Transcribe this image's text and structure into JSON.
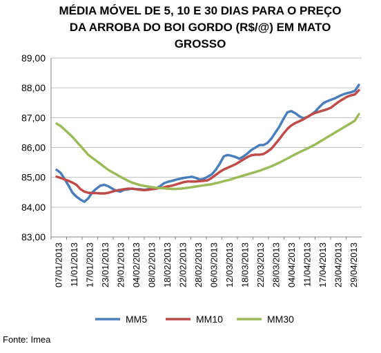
{
  "chart_data": {
    "type": "line",
    "title_lines": [
      "MÉDIA MÓVEL DE 5, 10 E 30 DIAS PARA O PREÇO",
      "DA  ARROBA DO BOI GORDO (R$/@) EM MATO",
      "GROSSO"
    ],
    "xlabel": "",
    "ylabel": "",
    "ylim": [
      83,
      89
    ],
    "y_ticks": [
      "83,00",
      "84,00",
      "85,00",
      "86,00",
      "87,00",
      "88,00",
      "89,00"
    ],
    "x_tick_labels": [
      "07/01/2013",
      "11/01/2013",
      "17/01/2013",
      "23/01/2013",
      "29/01/2013",
      "04/02/2013",
      "08/02/2013",
      "18/02/2013",
      "22/02/2013",
      "28/02/2013",
      "06/03/2013",
      "12/03/2013",
      "18/03/2013",
      "22/03/2013",
      "28/03/2013",
      "04/04/2013",
      "11/04/2013",
      "17/04/2013",
      "23/04/2013",
      "29/04/2013"
    ],
    "grid": "horizontal",
    "legend_position": "bottom",
    "series": [
      {
        "name": "MM5",
        "color": "#4a7ebb",
        "values": [
          85.25,
          85.15,
          84.95,
          84.72,
          84.48,
          84.35,
          84.25,
          84.18,
          84.3,
          84.5,
          84.62,
          84.72,
          84.75,
          84.7,
          84.62,
          84.55,
          84.52,
          84.58,
          84.6,
          84.62,
          84.6,
          84.6,
          84.58,
          84.6,
          84.62,
          84.63,
          84.7,
          84.8,
          84.85,
          84.88,
          84.92,
          84.95,
          84.98,
          85.0,
          85.02,
          84.98,
          84.92,
          84.95,
          85.02,
          85.1,
          85.25,
          85.45,
          85.7,
          85.75,
          85.72,
          85.68,
          85.62,
          85.7,
          85.8,
          85.92,
          86.0,
          86.08,
          86.08,
          86.15,
          86.3,
          86.5,
          86.7,
          86.95,
          87.18,
          87.22,
          87.15,
          87.05,
          86.98,
          87.02,
          87.1,
          87.2,
          87.35,
          87.48,
          87.55,
          87.6,
          87.65,
          87.72,
          87.78,
          87.82,
          87.85,
          87.9,
          88.1
        ]
      },
      {
        "name": "MM10",
        "color": "#be4b48",
        "values": [
          85.02,
          84.98,
          84.93,
          84.88,
          84.82,
          84.75,
          84.6,
          84.52,
          84.48,
          84.47,
          84.47,
          84.46,
          84.46,
          84.48,
          84.52,
          84.56,
          84.58,
          84.6,
          84.62,
          84.62,
          84.6,
          84.58,
          84.57,
          84.58,
          84.6,
          84.62,
          84.64,
          84.66,
          84.7,
          84.72,
          84.76,
          84.8,
          84.84,
          84.86,
          84.86,
          84.86,
          84.87,
          84.88,
          84.9,
          84.98,
          85.08,
          85.18,
          85.26,
          85.32,
          85.38,
          85.44,
          85.52,
          85.6,
          85.68,
          85.74,
          85.76,
          85.76,
          85.78,
          85.86,
          85.96,
          86.12,
          86.28,
          86.46,
          86.62,
          86.74,
          86.82,
          86.88,
          86.94,
          87.02,
          87.1,
          87.16,
          87.2,
          87.24,
          87.28,
          87.34,
          87.44,
          87.54,
          87.62,
          87.7,
          87.75,
          87.78,
          87.92
        ]
      },
      {
        "name": "MM30",
        "color": "#9bbb59",
        "values": [
          86.8,
          86.72,
          86.6,
          86.48,
          86.35,
          86.2,
          86.05,
          85.9,
          85.75,
          85.65,
          85.55,
          85.45,
          85.35,
          85.25,
          85.17,
          85.1,
          85.02,
          84.95,
          84.88,
          84.82,
          84.78,
          84.74,
          84.71,
          84.69,
          84.67,
          84.65,
          84.64,
          84.63,
          84.62,
          84.61,
          84.61,
          84.62,
          84.63,
          84.65,
          84.67,
          84.69,
          84.71,
          84.73,
          84.75,
          84.77,
          84.8,
          84.83,
          84.87,
          84.9,
          84.94,
          84.98,
          85.02,
          85.06,
          85.1,
          85.14,
          85.18,
          85.22,
          85.27,
          85.32,
          85.37,
          85.43,
          85.49,
          85.56,
          85.63,
          85.7,
          85.77,
          85.84,
          85.9,
          85.96,
          86.03,
          86.1,
          86.18,
          86.26,
          86.34,
          86.42,
          86.5,
          86.58,
          86.66,
          86.74,
          86.82,
          86.9,
          87.12
        ]
      }
    ]
  },
  "source_note": "Fonte: Imea"
}
